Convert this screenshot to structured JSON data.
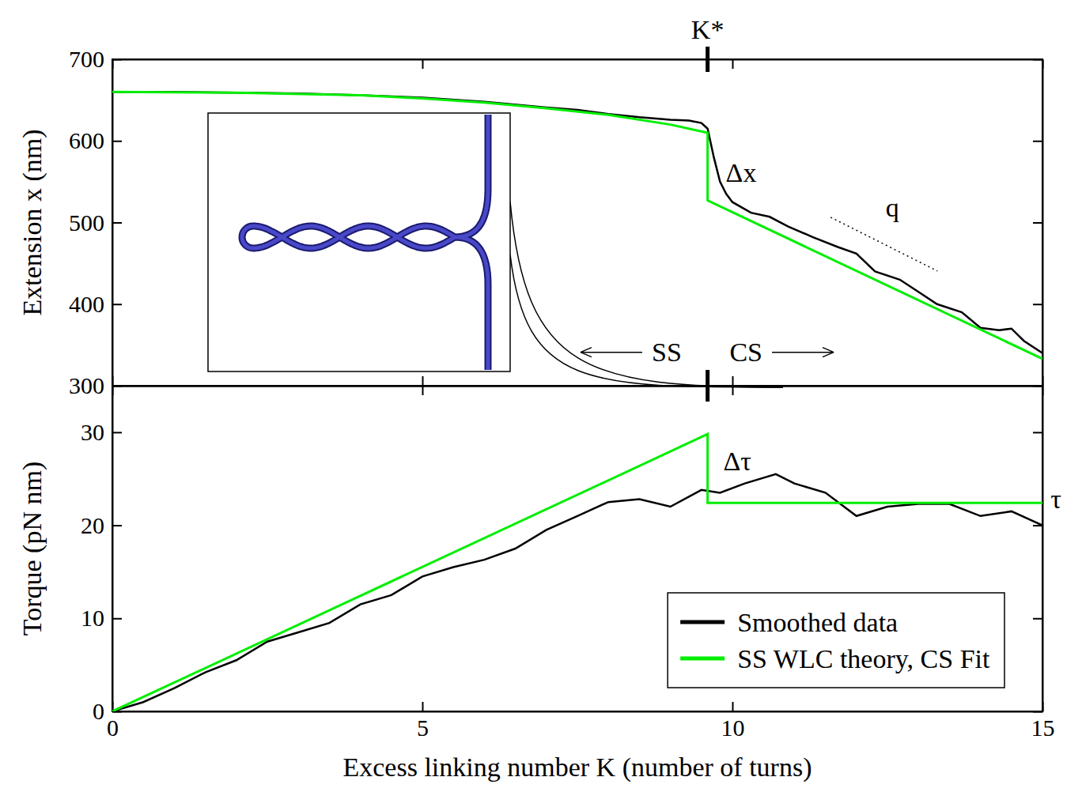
{
  "chart_data": [
    {
      "type": "line",
      "y_label": "Extension x (nm)",
      "xlim": [
        0,
        15
      ],
      "xticks": [
        0,
        5,
        10,
        15
      ],
      "ylim": [
        300,
        700
      ],
      "yticks": [
        300,
        400,
        500,
        600,
        700
      ],
      "tick_labels": "y",
      "series": [
        {
          "color": "#000000",
          "x": [
            0,
            1,
            2,
            3,
            4,
            5,
            6,
            7,
            7.5,
            8,
            8.5,
            9,
            9.3,
            9.5,
            9.6,
            9.7,
            9.8,
            9.9,
            10,
            10.3,
            10.6,
            10.9,
            11.3,
            11.7,
            12,
            12.3,
            12.7,
            13,
            13.3,
            13.7,
            14,
            14.3,
            14.5,
            14.7,
            15
          ],
          "values": [
            660,
            660,
            659,
            658,
            656,
            653,
            648,
            641,
            638,
            633,
            629,
            626,
            625,
            622,
            615,
            580,
            550,
            535,
            525,
            512,
            507,
            495,
            482,
            470,
            462,
            440,
            430,
            415,
            400,
            390,
            371,
            368,
            370,
            355,
            340
          ]
        },
        {
          "color": "#00ee00",
          "x": [
            0,
            2,
            4,
            5,
            6,
            7,
            8,
            9,
            9.6,
            9.6,
            15
          ],
          "values": [
            660,
            659,
            656,
            652,
            647,
            640,
            632,
            620,
            610,
            527,
            333
          ]
        }
      ],
      "annotations": [
        {
          "text": "K*",
          "x": 9.6
        },
        {
          "text": "Δx",
          "x": 10.14,
          "y": 561
        },
        {
          "text": "q",
          "x": 12.58,
          "y": 518,
          "line_style": "dotted"
        },
        {
          "text": "SS",
          "x": 8.94,
          "y": 341,
          "arrow": "left"
        },
        {
          "text": "CS",
          "x": 10.22,
          "y": 341,
          "arrow": "right"
        }
      ]
    },
    {
      "type": "line",
      "x_label": "Excess linking number K (number of turns)",
      "y_label": "Torque (pN nm)",
      "xlim": [
        0,
        15
      ],
      "xticks": [
        0,
        5,
        10,
        15
      ],
      "ylim": [
        0,
        35
      ],
      "yticks": [
        0,
        10,
        20,
        30
      ],
      "legend": "lower right",
      "series": [
        {
          "name": "Smoothed data",
          "color": "#000000",
          "x": [
            0,
            0.5,
            1,
            1.5,
            2,
            2.5,
            3,
            3.5,
            4,
            4.5,
            5,
            5.5,
            6,
            6.5,
            7,
            7.5,
            8,
            8.5,
            9,
            9.5,
            9.8,
            10.2,
            10.7,
            11,
            11.5,
            12,
            12.5,
            13,
            13.5,
            14,
            14.5,
            15
          ],
          "values": [
            0,
            1,
            2.5,
            4.2,
            5.5,
            7.5,
            8.5,
            9.5,
            11.5,
            12.5,
            14.5,
            15.5,
            16.3,
            17.5,
            19.5,
            21,
            22.5,
            22.8,
            22,
            23.8,
            23.5,
            24.5,
            25.5,
            24.5,
            23.5,
            21,
            22,
            22.3,
            22.3,
            21,
            21.5,
            20
          ]
        },
        {
          "name": "SS WLC theory, CS Fit",
          "color": "#00ee00",
          "x": [
            0,
            9.6,
            9.6,
            15
          ],
          "values": [
            0,
            29.8,
            22.4,
            22.4
          ]
        }
      ],
      "annotations": [
        {
          "text": "Δτ",
          "x": 10.08,
          "y": 26.9
        },
        {
          "text": "τ",
          "y": 22.8
        }
      ]
    }
  ]
}
